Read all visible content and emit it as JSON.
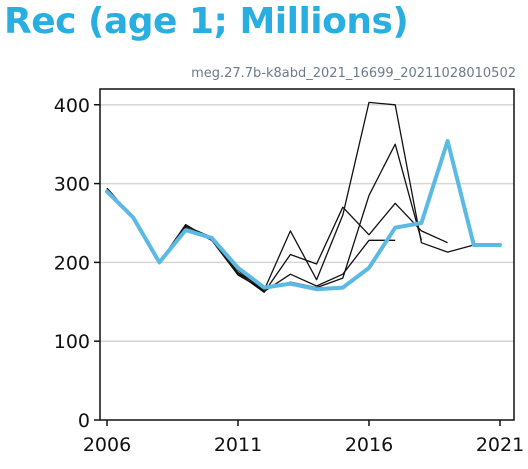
{
  "colors": {
    "title": "#29aee2",
    "subtitle": "#6b7b8c",
    "highlight": "#5bb9e4",
    "grid": "#d6d6d6",
    "history": "#111111",
    "axis": "#111111"
  },
  "chart_data": {
    "type": "line",
    "title": "Rec (age 1; Millions)",
    "subtitle": "meg.27.7b-k8abd_2021_16699_20211028010502",
    "xlabel": "",
    "ylabel": "",
    "xlim": [
      2006,
      2021
    ],
    "ylim": [
      0,
      420
    ],
    "grid": "horizontal",
    "x_ticks": [
      2006,
      2011,
      2016,
      2021
    ],
    "y_ticks": [
      0,
      100,
      200,
      300,
      400
    ],
    "history_series": [
      {
        "x": [
          2006,
          2007,
          2008,
          2009,
          2010,
          2011,
          2012,
          2013,
          2014,
          2015,
          2016,
          2017
        ],
        "values": [
          294,
          256,
          200,
          244,
          228,
          190,
          163,
          185,
          170,
          185,
          228,
          228
        ]
      },
      {
        "x": [
          2006,
          2007,
          2008,
          2009,
          2010,
          2011,
          2012,
          2013,
          2014,
          2015,
          2016,
          2017,
          2018
        ],
        "values": [
          294,
          256,
          200,
          244,
          230,
          187,
          166,
          175,
          168,
          180,
          285,
          350,
          228
        ]
      },
      {
        "x": [
          2006,
          2007,
          2008,
          2009,
          2010,
          2011,
          2012,
          2013,
          2014,
          2015,
          2016,
          2017,
          2018,
          2019
        ],
        "values": [
          294,
          256,
          200,
          246,
          232,
          186,
          162,
          210,
          198,
          270,
          235,
          275,
          240,
          225
        ]
      },
      {
        "x": [
          2006,
          2007,
          2008,
          2009,
          2010,
          2011,
          2012,
          2013,
          2014,
          2015,
          2016,
          2017,
          2018,
          2019,
          2020
        ],
        "values": [
          294,
          256,
          200,
          248,
          228,
          184,
          165,
          240,
          178,
          260,
          403,
          400,
          225,
          213,
          222
        ]
      }
    ],
    "highlight_series": {
      "x": [
        2006,
        2007,
        2008,
        2009,
        2010,
        2011,
        2012,
        2013,
        2014,
        2015,
        2016,
        2017,
        2018,
        2019,
        2020,
        2021
      ],
      "values": [
        290,
        257,
        200,
        241,
        231,
        193,
        168,
        173,
        166,
        168,
        193,
        244,
        250,
        354,
        222,
        222
      ]
    }
  }
}
